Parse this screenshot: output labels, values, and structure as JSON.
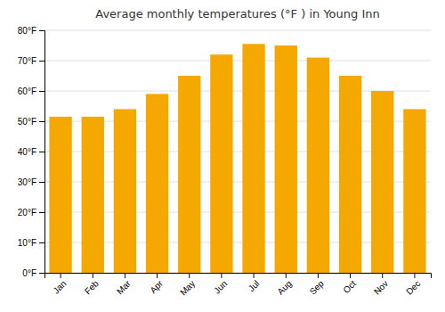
{
  "chart_data": {
    "type": "bar",
    "title": "Average monthly temperatures (°F ) in Young Inn",
    "categories": [
      "Jan",
      "Feb",
      "Mar",
      "Apr",
      "May",
      "Jun",
      "Jul",
      "Aug",
      "Sep",
      "Oct",
      "Nov",
      "Dec"
    ],
    "values": [
      51.5,
      51.5,
      54,
      59,
      65,
      72,
      75.5,
      75,
      71,
      65,
      60,
      54
    ],
    "color": "#F5A800",
    "ylim": [
      0,
      80
    ],
    "yticks": [
      {
        "value": 0,
        "label": "0°F"
      },
      {
        "value": 10,
        "label": "10°F"
      },
      {
        "value": 20,
        "label": "20°F"
      },
      {
        "value": 30,
        "label": "30°F"
      },
      {
        "value": 40,
        "label": "40°F"
      },
      {
        "value": 50,
        "label": "50°F"
      },
      {
        "value": 60,
        "label": "60°F"
      },
      {
        "value": 70,
        "label": "70°F"
      },
      {
        "value": 80,
        "label": "80°F"
      }
    ],
    "grid": true
  }
}
